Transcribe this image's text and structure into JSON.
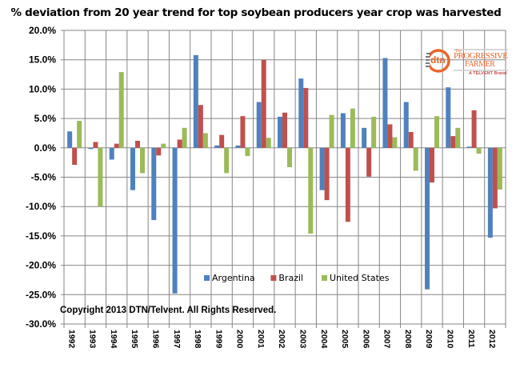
{
  "chart_data": {
    "type": "bar",
    "title": "% deviation from 20 year trend for top soybean producers year crop was harvested",
    "xlabel": "",
    "ylabel": "",
    "ylim": [
      -30,
      20
    ],
    "yticks": [
      20,
      15,
      10,
      5,
      0,
      -5,
      -10,
      -15,
      -20,
      -25,
      -30
    ],
    "ytick_labels": [
      "20.0%",
      "15.0%",
      "10.0%",
      "5.0%",
      "0.0%",
      "-5.0%",
      "-10.0%",
      "-15.0%",
      "-20.0%",
      "-25.0%",
      "-30.0%"
    ],
    "grid": true,
    "legend_position": "bottom-center-inside",
    "categories": [
      "1992",
      "1993",
      "1994",
      "1995",
      "1996",
      "1997",
      "1998",
      "1999",
      "2000",
      "2001",
      "2002",
      "2003",
      "2004",
      "2005",
      "2006",
      "2007",
      "2008",
      "2009",
      "2010",
      "2011",
      "2012"
    ],
    "series": [
      {
        "name": "Argentina",
        "color": "#4F81BD",
        "values": [
          2.8,
          -0.2,
          -2.0,
          -7.2,
          -12.3,
          -24.8,
          15.8,
          0.4,
          0.4,
          7.8,
          5.3,
          11.8,
          -7.2,
          5.9,
          3.4,
          15.3,
          7.8,
          -24.1,
          10.3,
          0.2,
          -15.3
        ]
      },
      {
        "name": "Brazil",
        "color": "#C0504D",
        "values": [
          -2.9,
          1.0,
          0.7,
          1.2,
          -1.3,
          1.4,
          7.3,
          2.2,
          5.4,
          15.0,
          6.0,
          10.2,
          -8.9,
          -12.6,
          -4.9,
          4.0,
          2.7,
          -5.9,
          2.0,
          6.4,
          -10.3
        ]
      },
      {
        "name": "United States",
        "color": "#9BBB59",
        "values": [
          4.6,
          -10.0,
          12.9,
          -4.3,
          0.7,
          3.4,
          2.5,
          -4.3,
          -1.4,
          1.7,
          -3.3,
          -14.6,
          5.6,
          6.7,
          5.3,
          1.8,
          -3.9,
          5.4,
          3.4,
          -1.0,
          -7.1
        ]
      }
    ],
    "annotations": [
      "Copyright 2013 DTN/Telvent. All Rights Reserved."
    ]
  },
  "logo": {
    "dtn": "dtn",
    "the": "The",
    "line1": "PROGRESSIVE",
    "line2": "FARMER",
    "brand": "A TELVENT Brand"
  }
}
